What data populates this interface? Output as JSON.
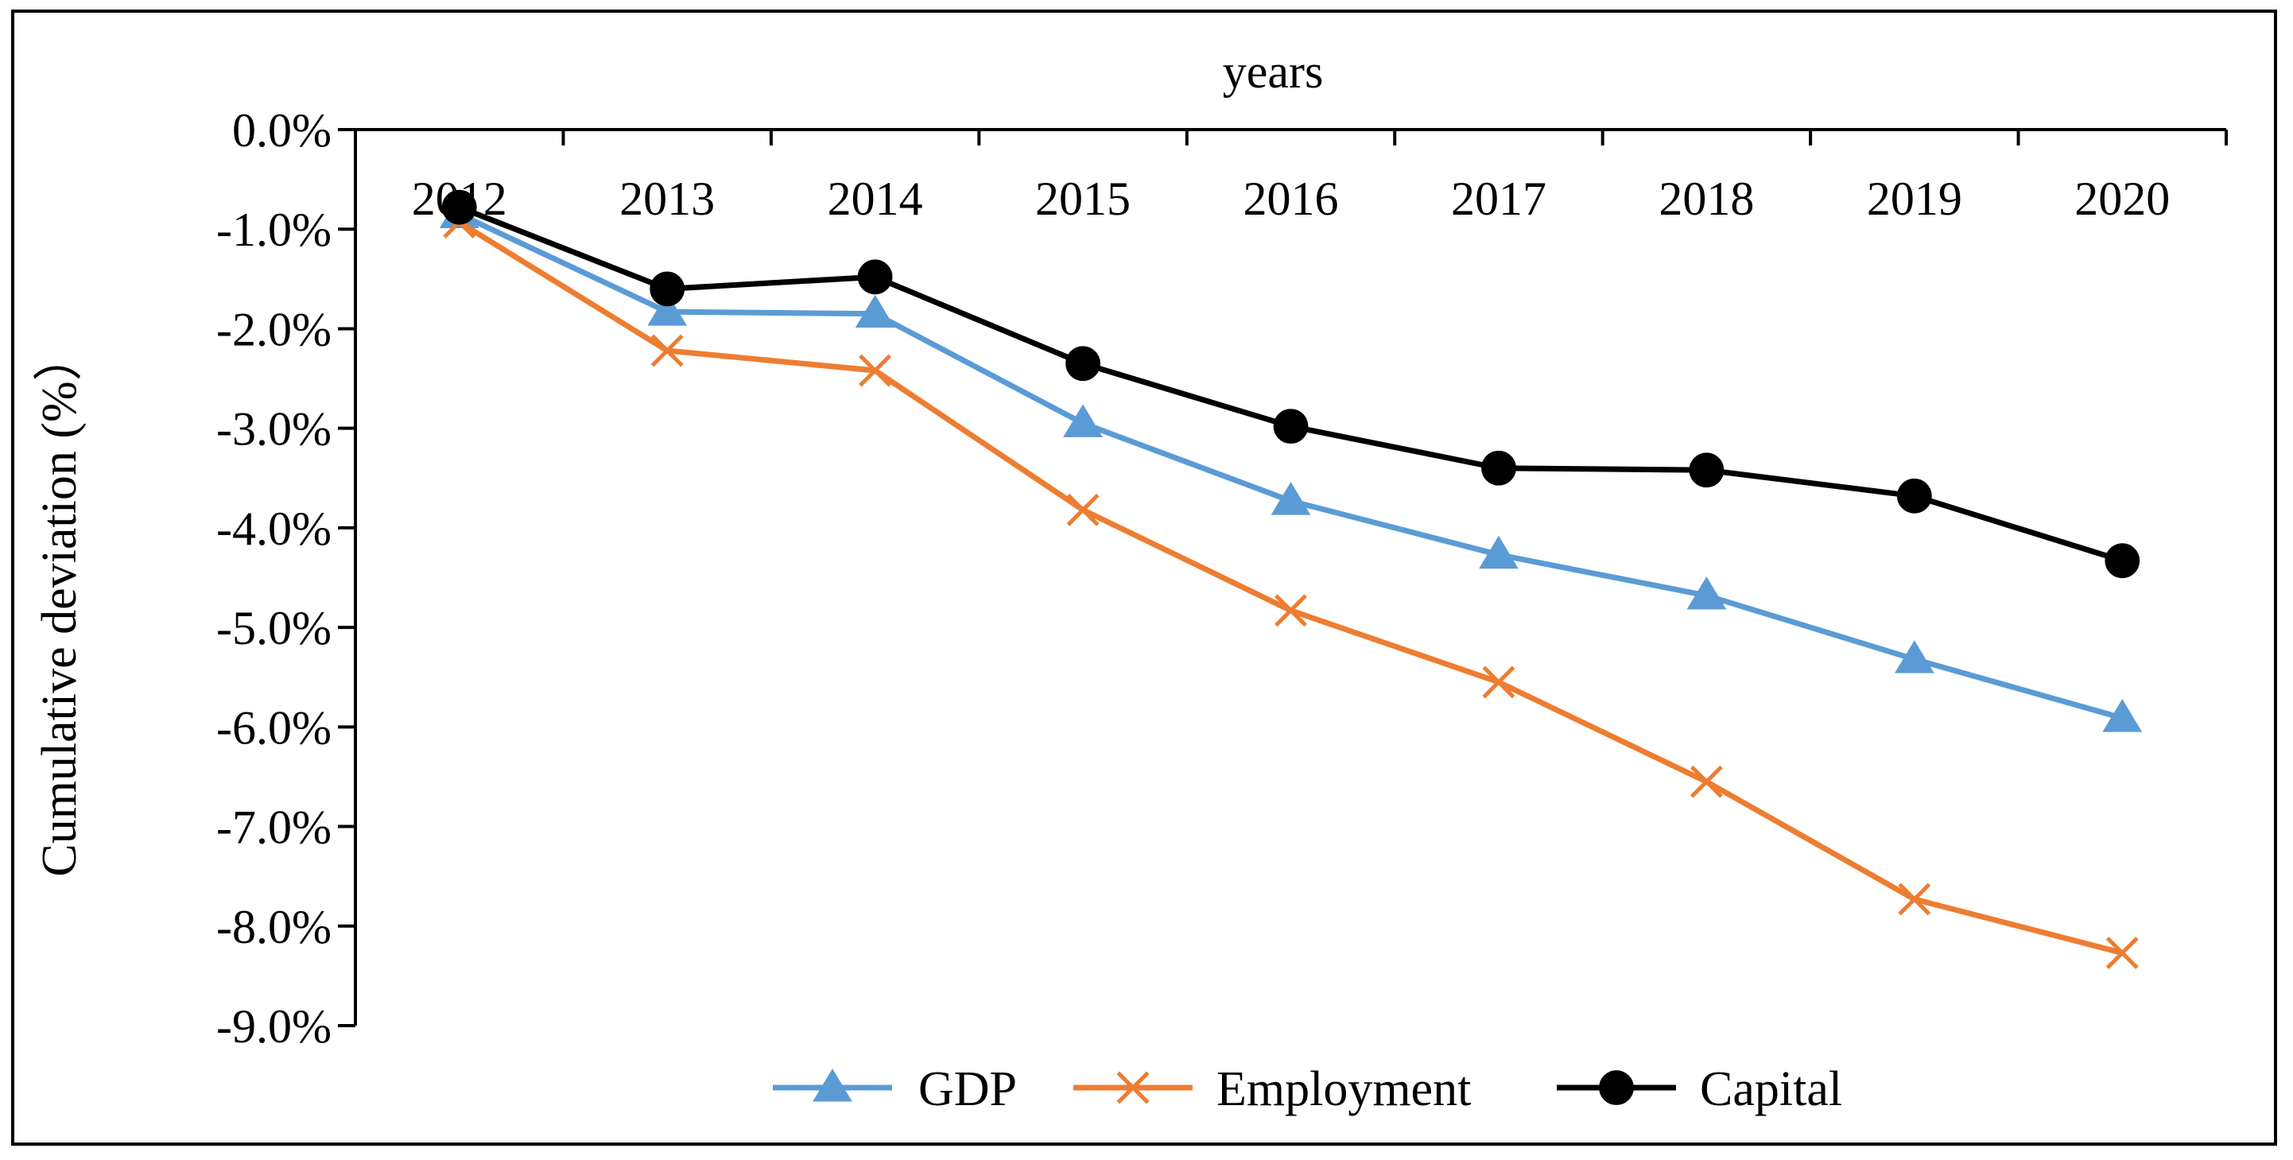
{
  "chart_data": {
    "type": "line",
    "title": "",
    "xlabel": "years",
    "ylabel": "Cumulative deviation (%）",
    "x": [
      "2012",
      "2013",
      "2014",
      "2015",
      "2016",
      "2017",
      "2018",
      "2019",
      "2020"
    ],
    "ylim": [
      -9.0,
      0.0
    ],
    "yticks": [
      "0.0%",
      "-1.0%",
      "-2.0%",
      "-3.0%",
      "-4.0%",
      "-5.0%",
      "-6.0%",
      "-7.0%",
      "-8.0%",
      "-9.0%"
    ],
    "ytick_values": [
      0,
      -1,
      -2,
      -3,
      -4,
      -5,
      -6,
      -7,
      -8,
      -9
    ],
    "grid": false,
    "legend_position": "bottom",
    "series": [
      {
        "name": "GDP",
        "color": "#5B9BD5",
        "marker": "triangle",
        "values": [
          -0.85,
          -1.83,
          -1.85,
          -2.95,
          -3.73,
          -4.27,
          -4.68,
          -5.32,
          -5.91
        ]
      },
      {
        "name": "Employment",
        "color": "#ED7D31",
        "marker": "x",
        "values": [
          -0.93,
          -2.22,
          -2.42,
          -3.82,
          -4.83,
          -5.55,
          -6.55,
          -7.73,
          -8.27
        ]
      },
      {
        "name": "Capital",
        "color": "#000000",
        "marker": "circle",
        "values": [
          -0.78,
          -1.6,
          -1.48,
          -2.35,
          -2.98,
          -3.4,
          -3.42,
          -3.68,
          -4.33
        ]
      }
    ]
  }
}
